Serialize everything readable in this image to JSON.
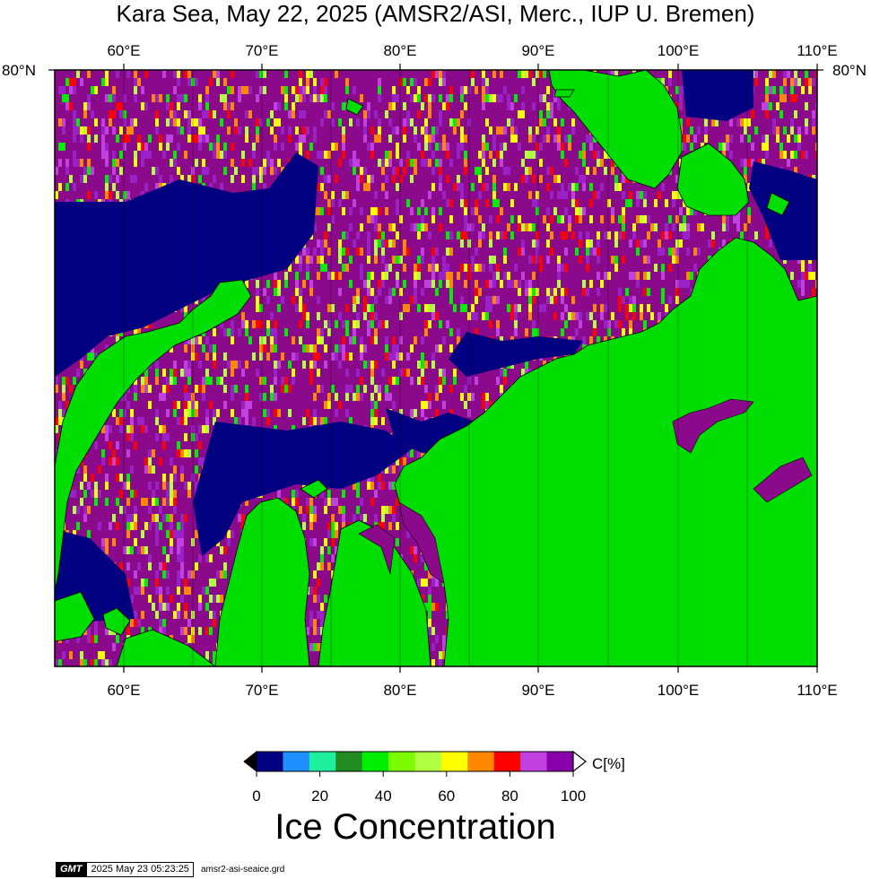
{
  "title": "Kara Sea, May 22, 2025 (AMSR2/ASI, Merc., IUP U. Bremen)",
  "lon_ticks": [
    "60°E",
    "70°E",
    "80°E",
    "90°E",
    "100°E",
    "110°E"
  ],
  "lat_tick": "80°N",
  "colorbar": {
    "unit": "C[%]",
    "labels": [
      "0",
      "20",
      "40",
      "60",
      "80",
      "100"
    ],
    "colors": [
      "#000080",
      "#1e90ff",
      "#1ef0a0",
      "#228b22",
      "#00ee00",
      "#7cfc00",
      "#b0ff40",
      "#ffff00",
      "#ff8800",
      "#ff0000",
      "#c040e0",
      "#8800aa"
    ]
  },
  "subtitle": "Ice Concentration",
  "footer": {
    "logo": "GMT",
    "timestamp": "2025 May 23 05:23:25",
    "filename": "amsr2-asi-seaice.grd"
  },
  "palette": {
    "land": "#00dd00",
    "water": "#000080",
    "ice_high": "#8b0a8b",
    "ice_mid": "#9a20c8"
  }
}
